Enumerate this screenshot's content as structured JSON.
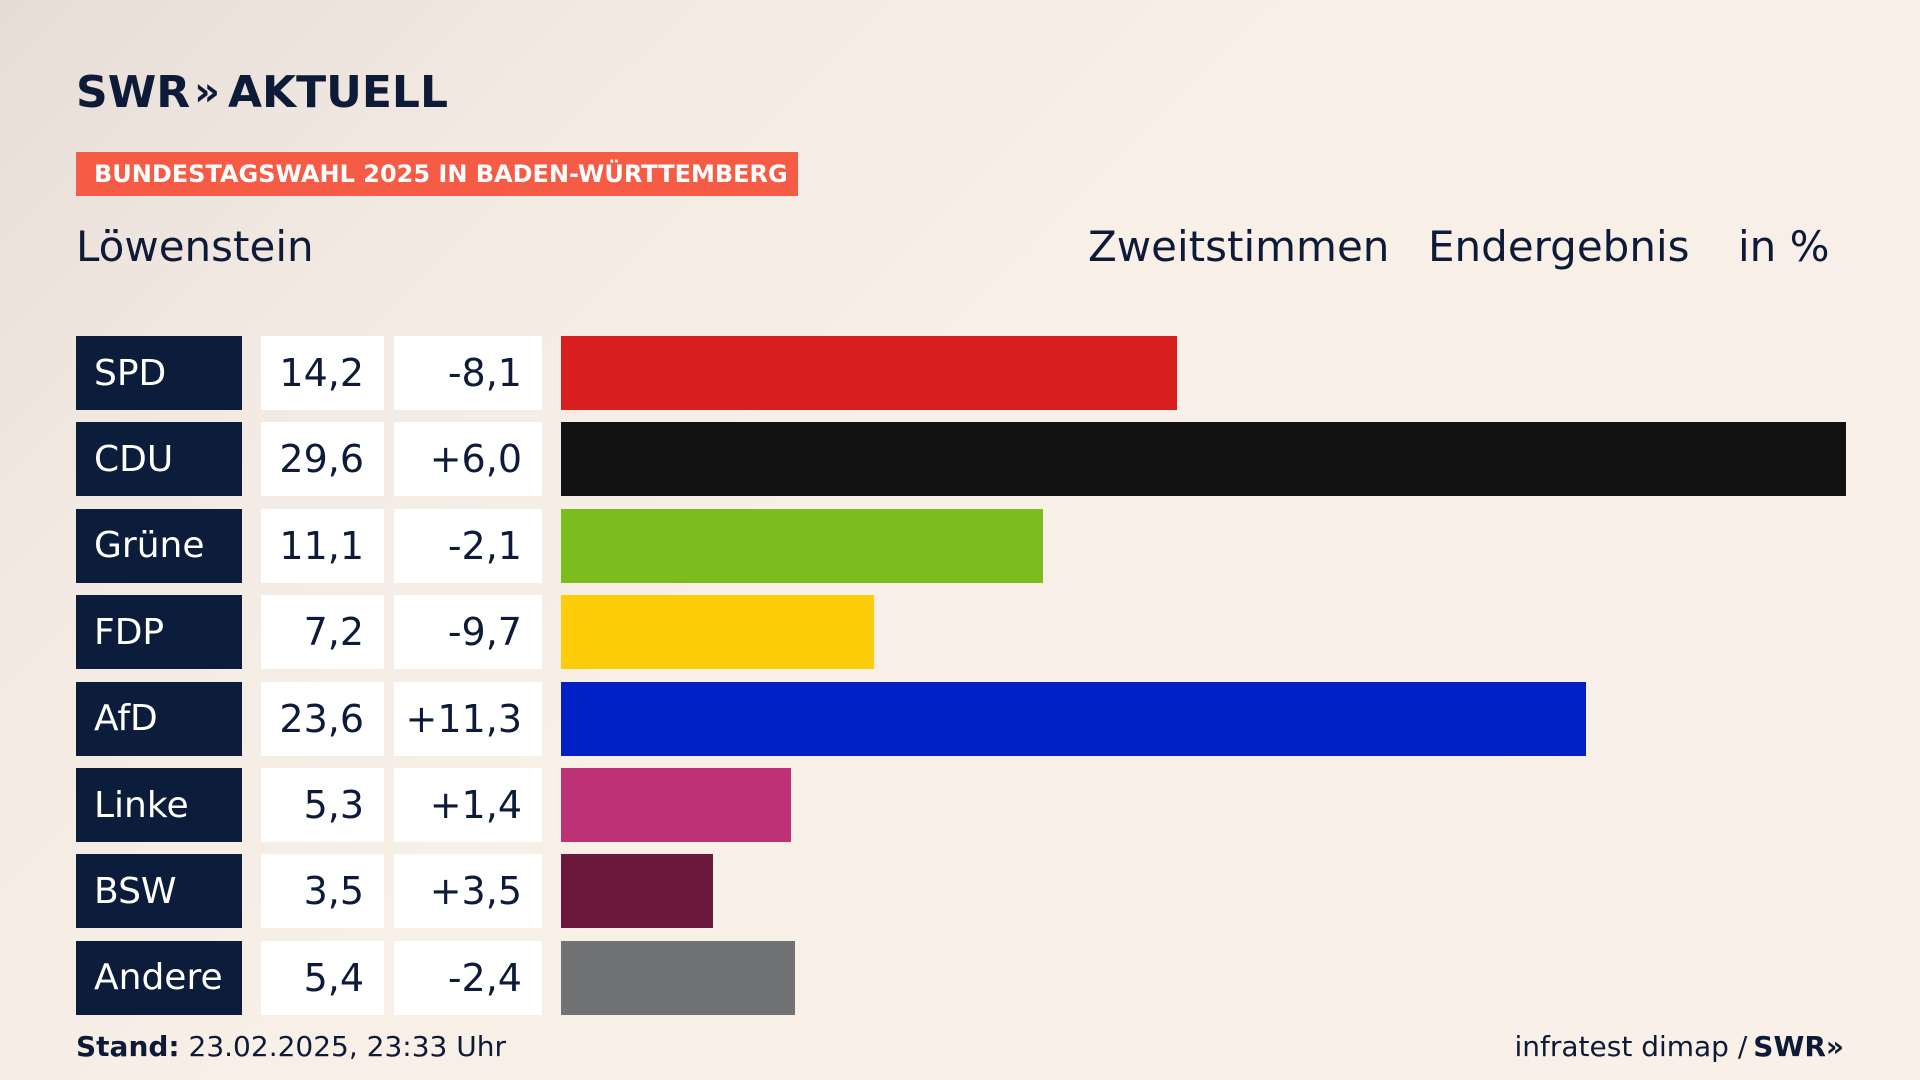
{
  "header": {
    "logo_swr": "SWR",
    "logo_chevrons": "»",
    "logo_aktuell": "AKTUELL",
    "banner": "BUNDESTAGSWAHL 2025 IN BADEN-WÜRTTEMBERG",
    "place": "Löwenstein",
    "col_zweitstimmen": "Zweitstimmen",
    "col_endergebnis": "Endergebnis",
    "col_unit": "in %"
  },
  "chart_data": {
    "type": "bar",
    "orientation": "horizontal",
    "categories": [
      "SPD",
      "CDU",
      "Grüne",
      "FDP",
      "AfD",
      "Linke",
      "BSW",
      "Andere"
    ],
    "values": [
      14.2,
      29.6,
      11.1,
      7.2,
      23.6,
      5.3,
      3.5,
      5.4
    ],
    "value_labels": [
      "14,2",
      "29,6",
      "11,1",
      "7,2",
      "23,6",
      "5,3",
      "3,5",
      "5,4"
    ],
    "diff_labels": [
      "-8,1",
      "+6,0",
      "-2,1",
      "-9,7",
      "+11,3",
      "+1,4",
      "+3,5",
      "-2,4"
    ],
    "colors": [
      "#d81e1f",
      "#121212",
      "#7bbd1c",
      "#fdcd0a",
      "#0120c6",
      "#bc3173",
      "#6b183d",
      "#717273"
    ],
    "xlim": [
      0,
      29.6
    ]
  },
  "footer": {
    "stand_label": "Stand:",
    "stand_value": "23.02.2025, 23:33 Uhr",
    "source": "infratest dimap /",
    "source_logo": "SWR»"
  }
}
